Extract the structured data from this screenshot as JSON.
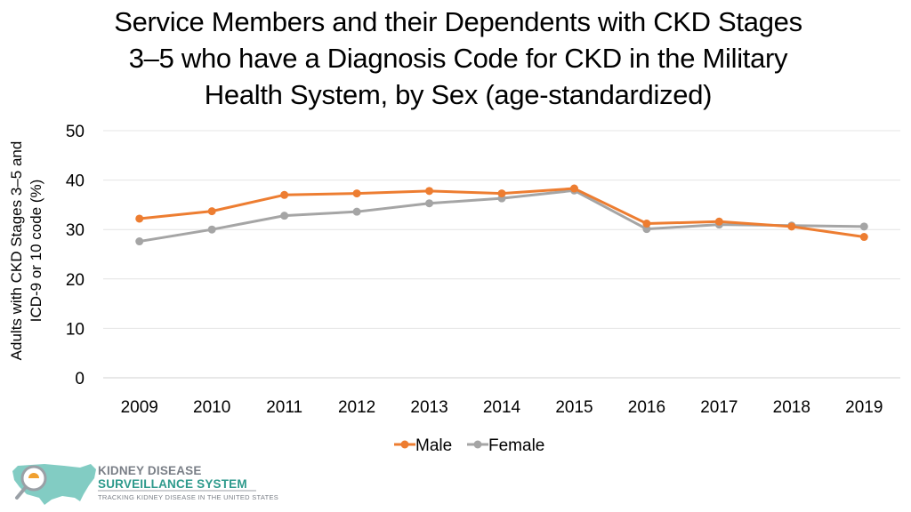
{
  "chart_data": {
    "type": "line",
    "title_lines": [
      "Service Members and their Dependents with CKD Stages",
      "3–5 who have a Diagnosis Code for CKD in the Military",
      "Health System, by Sex (age-standardized)"
    ],
    "ylabel_lines": [
      "Adults with CKD Stages 3–5 and",
      "ICD-9 or 10 code (%)"
    ],
    "xlabel": "",
    "categories": [
      "2009",
      "2010",
      "2011",
      "2012",
      "2013",
      "2014",
      "2015",
      "2016",
      "2017",
      "2018",
      "2019"
    ],
    "ylim": [
      0,
      50
    ],
    "yticks": [
      0,
      10,
      20,
      30,
      40,
      50
    ],
    "grid": true,
    "legend_position": "bottom-center",
    "series": [
      {
        "name": "Male",
        "color": "#ED7D31",
        "values": [
          32.2,
          33.7,
          37.0,
          37.3,
          37.8,
          37.3,
          38.3,
          31.2,
          31.6,
          30.6,
          28.5
        ]
      },
      {
        "name": "Female",
        "color": "#A5A5A5",
        "values": [
          27.6,
          30.0,
          32.8,
          33.6,
          35.3,
          36.3,
          37.9,
          30.1,
          31.0,
          30.8,
          30.6
        ]
      }
    ]
  },
  "logo": {
    "line1": "KIDNEY DISEASE",
    "line2": "SURVEILLANCE SYSTEM",
    "line3": "TRACKING KIDNEY DISEASE IN THE UNITED STATES"
  }
}
